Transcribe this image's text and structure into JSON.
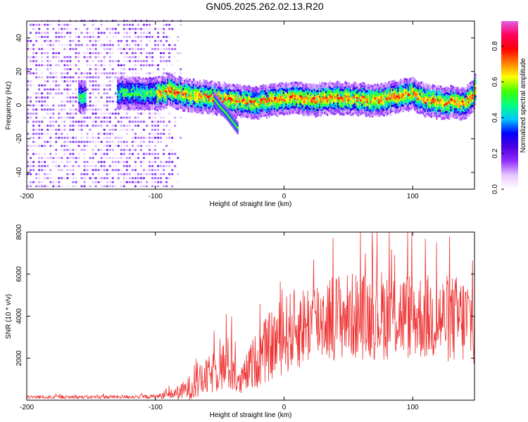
{
  "figure": {
    "title": "GN05.2025.262.02.13.R20"
  },
  "chart_data": [
    {
      "type": "heatmap",
      "panel": "spectrogram",
      "xlabel": "Height of straight line (km)",
      "ylabel": "Frequency (Hz)",
      "xlim": [
        -200,
        148
      ],
      "ylim": [
        -50,
        50
      ],
      "xticks": [
        -200,
        -100,
        0,
        100
      ],
      "yticks": [
        -40,
        -20,
        0,
        20,
        40
      ],
      "grid": false,
      "ridge": {
        "description_x": [
          -160,
          -125,
          -110,
          -100,
          -90,
          -80,
          -70,
          -60,
          -50,
          -40,
          -30,
          -20,
          -10,
          0,
          10,
          20,
          30,
          40,
          50,
          60,
          70,
          80,
          90,
          100,
          110,
          120,
          130,
          140,
          145,
          148
        ],
        "frequency_hz": [
          4,
          7,
          6,
          6,
          8,
          6,
          5,
          4,
          3,
          2,
          1,
          1,
          2,
          3,
          4,
          2,
          3,
          4,
          3,
          3,
          2,
          3,
          5,
          6,
          2,
          1,
          1,
          0,
          4,
          8
        ]
      },
      "side_branch": {
        "x": [
          -55,
          -50,
          -45,
          -40,
          -36
        ],
        "frequency_hz": [
          3,
          -2,
          -6,
          -11,
          -15
        ]
      },
      "colorbar": {
        "label": "Normalized spectral amplitude",
        "range": [
          0.0,
          0.9
        ],
        "ticks": [
          0.0,
          0.2,
          0.4,
          0.6,
          0.8
        ],
        "colormap": [
          "#ffffff",
          "#e8c8ff",
          "#9030ff",
          "#5000e0",
          "#0000ff",
          "#00c8ff",
          "#00ff80",
          "#40ff00",
          "#ffff00",
          "#ff8000",
          "#ff0000",
          "#ff0060",
          "#e060e0"
        ]
      }
    },
    {
      "type": "line",
      "panel": "snr",
      "xlabel": "Height of straight line (km)",
      "ylabel": "SNR (10 * v/v)",
      "xlim": [
        -200,
        148
      ],
      "ylim": [
        0,
        8000
      ],
      "xticks": [
        -200,
        -100,
        0,
        100
      ],
      "yticks": [
        2000,
        4000,
        6000,
        8000
      ],
      "grid": false,
      "series": [
        {
          "name": "SNR",
          "color": "#ee3333",
          "envelope_x": [
            -200,
            -150,
            -100,
            -90,
            -80,
            -70,
            -60,
            -50,
            -45,
            -40,
            -35,
            -30,
            -25,
            -20,
            -10,
            0,
            10,
            20,
            30,
            40,
            60,
            80,
            100,
            120,
            140,
            148
          ],
          "envelope_mean": [
            150,
            150,
            170,
            250,
            400,
            700,
            1100,
            1500,
            1700,
            1600,
            700,
            1200,
            1700,
            2000,
            2600,
            3100,
            3400,
            3700,
            3900,
            4000,
            4000,
            4100,
            4000,
            3900,
            3800,
            3800
          ],
          "envelope_spread": [
            80,
            80,
            100,
            200,
            400,
            700,
            900,
            1100,
            1400,
            1300,
            600,
            900,
            1200,
            1400,
            1700,
            1900,
            2000,
            2000,
            2100,
            2100,
            2100,
            2200,
            2100,
            2100,
            2200,
            2200
          ]
        }
      ]
    }
  ]
}
